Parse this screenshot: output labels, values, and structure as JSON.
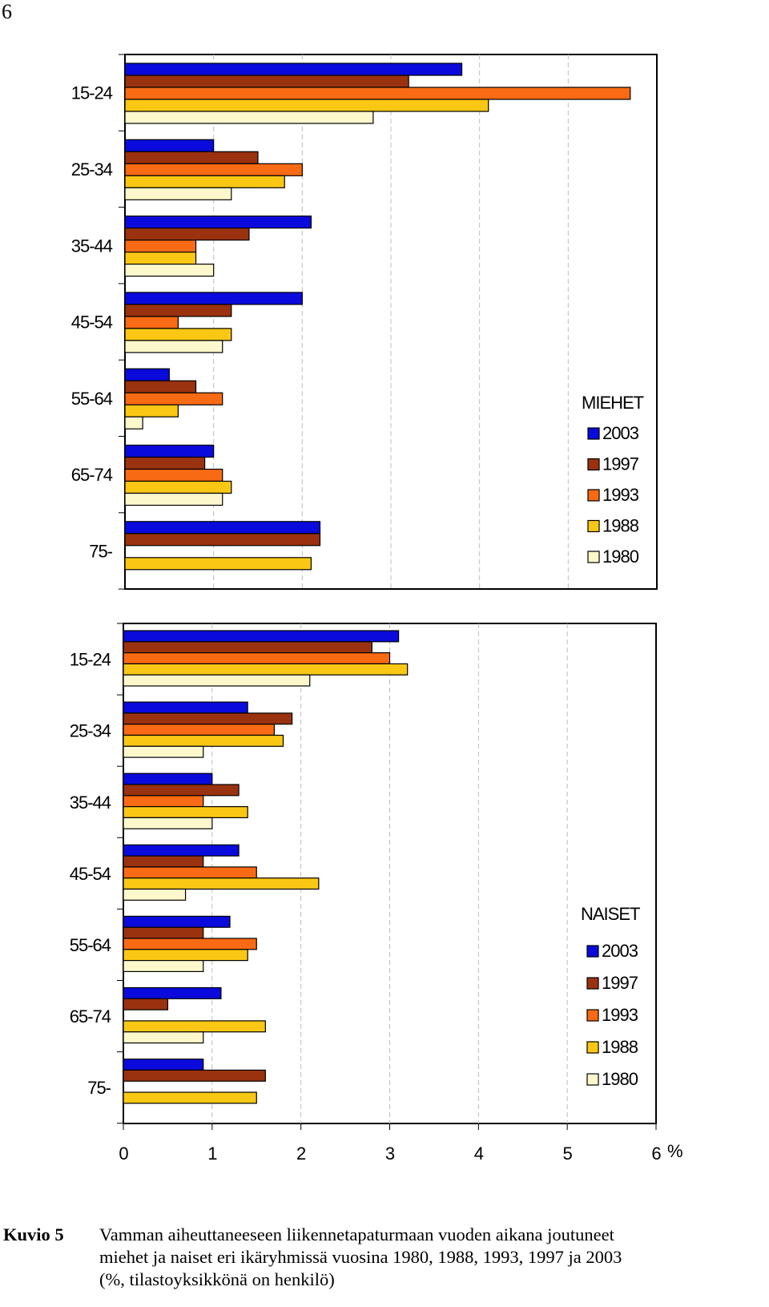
{
  "page_number": "6",
  "caption": {
    "label": "Kuvio 5",
    "lines": [
      "Vamman aiheuttaneeseen liikennetapaturmaan vuoden aikana joutuneet",
      "miehet ja naiset eri ikäryhmissä vuosina 1980, 1988, 1993, 1997 ja 2003",
      "(%, tilastoyksikkönä on henkilö)"
    ]
  },
  "colors": {
    "2003": "#0a0adc",
    "1997": "#9a3210",
    "1993": "#f86a14",
    "1988": "#fac814",
    "1980": "#fdf8cc"
  },
  "chart_data": [
    {
      "type": "bar",
      "orientation": "horizontal",
      "title": "MIEHET",
      "categories": [
        "15-24",
        "25-34",
        "35-44",
        "45-54",
        "55-64",
        "65-74",
        "75-"
      ],
      "series": [
        {
          "name": "2003",
          "values": [
            3.8,
            1.0,
            2.1,
            2.0,
            0.5,
            1.0,
            2.2
          ]
        },
        {
          "name": "1997",
          "values": [
            3.2,
            1.5,
            1.4,
            1.2,
            0.8,
            0.9,
            2.2
          ]
        },
        {
          "name": "1993",
          "values": [
            5.7,
            2.0,
            0.8,
            0.6,
            1.1,
            1.1,
            0
          ]
        },
        {
          "name": "1988",
          "values": [
            4.1,
            1.8,
            0.8,
            1.2,
            0.6,
            1.2,
            2.1
          ]
        },
        {
          "name": "1980",
          "values": [
            2.8,
            1.2,
            1.0,
            1.1,
            0.2,
            1.1,
            0
          ]
        }
      ],
      "xlim": [
        0,
        6
      ],
      "grid": true,
      "legend_position": "bottom-right"
    },
    {
      "type": "bar",
      "orientation": "horizontal",
      "title": "NAISET",
      "categories": [
        "15-24",
        "25-34",
        "35-44",
        "45-54",
        "55-64",
        "65-74",
        "75-"
      ],
      "series": [
        {
          "name": "2003",
          "values": [
            3.1,
            1.4,
            1.0,
            1.3,
            1.2,
            1.1,
            0.9
          ]
        },
        {
          "name": "1997",
          "values": [
            2.8,
            1.9,
            1.3,
            0.9,
            0.9,
            0.5,
            1.6
          ]
        },
        {
          "name": "1993",
          "values": [
            3.0,
            1.7,
            0.9,
            1.5,
            1.5,
            0,
            0
          ]
        },
        {
          "name": "1988",
          "values": [
            3.2,
            1.8,
            1.4,
            2.2,
            1.4,
            1.6,
            1.5
          ]
        },
        {
          "name": "1980",
          "values": [
            2.1,
            0.9,
            1.0,
            0.7,
            0.9,
            0.9,
            0
          ]
        }
      ],
      "xlim": [
        0,
        6
      ],
      "x_ticks": [
        "0",
        "1",
        "2",
        "3",
        "4",
        "5",
        "6"
      ],
      "x_unit": "%",
      "grid": true,
      "legend_position": "bottom-right"
    }
  ]
}
